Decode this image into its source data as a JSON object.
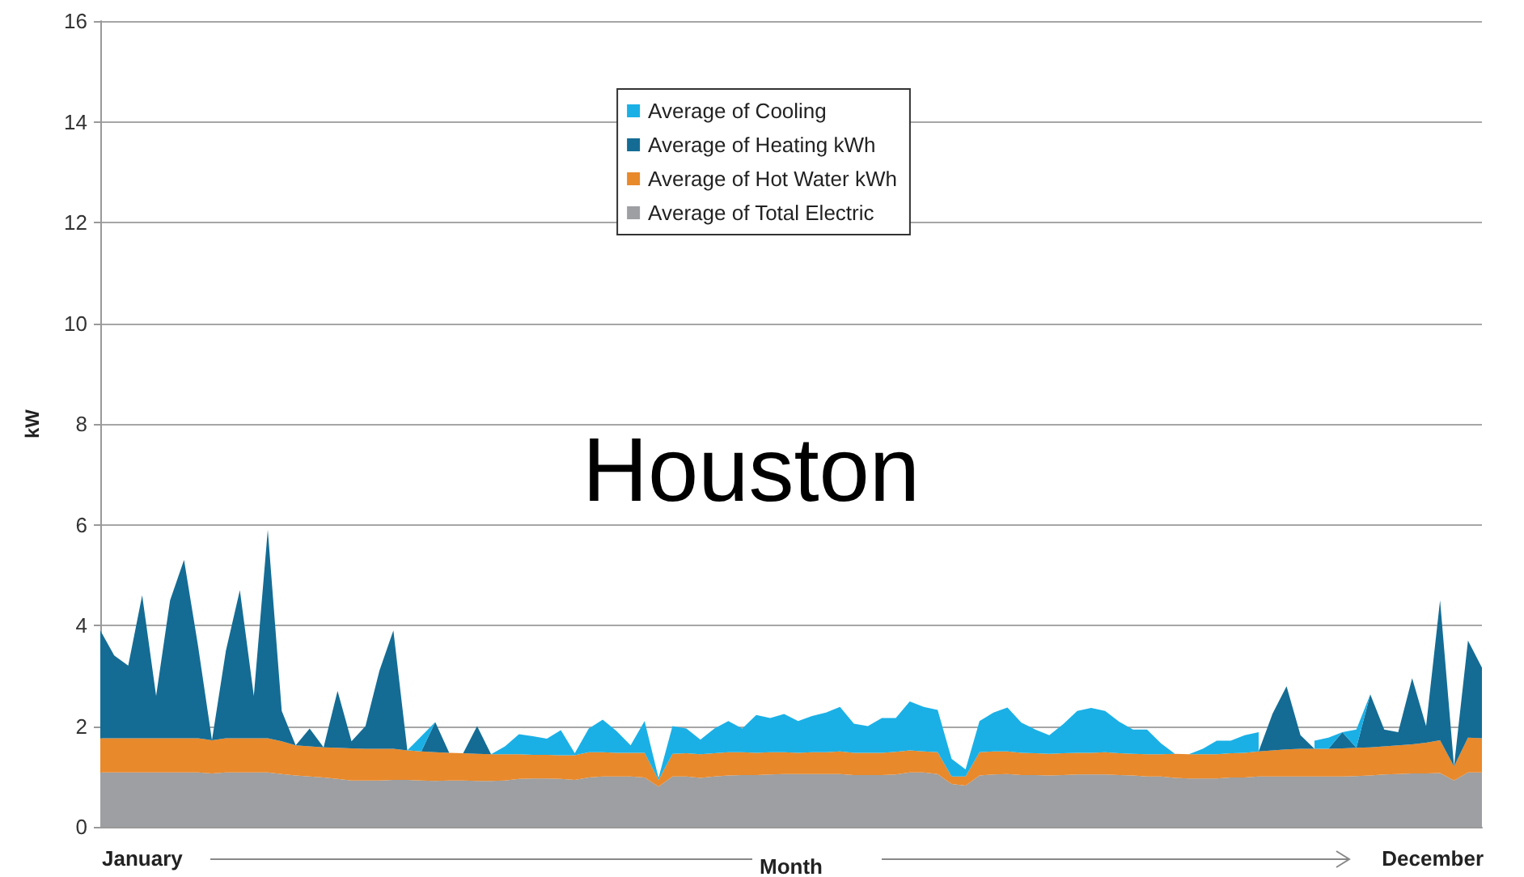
{
  "chart_data": {
    "type": "area",
    "stacked": true,
    "ylabel": "kW",
    "xlabel": "Month",
    "annotations": [
      "Houston",
      "January",
      "December"
    ],
    "categories": [
      null,
      null,
      null,
      null,
      null,
      null,
      null,
      null,
      null,
      null,
      null,
      null,
      null,
      null,
      null,
      null,
      null,
      null,
      null,
      null,
      null,
      null,
      null,
      null,
      null,
      null,
      null,
      null,
      null,
      null,
      null,
      null,
      null,
      null,
      null,
      null,
      null,
      null,
      null,
      null,
      null,
      null,
      null,
      null,
      null,
      null,
      null,
      null,
      null,
      null,
      null,
      null,
      null,
      null,
      null,
      null,
      null,
      null,
      null,
      null,
      null,
      null,
      null,
      null,
      null,
      null,
      null,
      null,
      null,
      null,
      null,
      null,
      null,
      null,
      null,
      null,
      null,
      null,
      null,
      null,
      null,
      null,
      null,
      null,
      null,
      null,
      null,
      null,
      null,
      null,
      null,
      null,
      null,
      null,
      null,
      null,
      null,
      null,
      null,
      null
    ],
    "ylim": [
      0,
      16
    ],
    "yticks": [
      0,
      2,
      4,
      6,
      8,
      10,
      12,
      14,
      16
    ],
    "grid": "y",
    "legend": "top",
    "series": [
      {
        "name": "Average of Total Electric",
        "color": "#9d9fa2",
        "values": [
          1.08,
          1.08,
          1.08,
          1.08,
          1.08,
          1.08,
          1.08,
          1.08,
          1.06,
          1.08,
          1.08,
          1.08,
          1.08,
          1.05,
          1.02,
          1.0,
          0.98,
          0.95,
          0.92,
          0.92,
          0.92,
          0.93,
          0.93,
          0.92,
          0.91,
          0.92,
          0.92,
          0.91,
          0.91,
          0.92,
          0.95,
          0.96,
          0.96,
          0.95,
          0.93,
          0.98,
          1.0,
          1.0,
          1.0,
          0.98,
          0.8,
          1.0,
          1.0,
          0.97,
          1.0,
          1.02,
          1.03,
          1.03,
          1.04,
          1.05,
          1.05,
          1.05,
          1.05,
          1.05,
          1.03,
          1.03,
          1.03,
          1.04,
          1.08,
          1.08,
          1.05,
          0.85,
          0.82,
          1.02,
          1.04,
          1.05,
          1.03,
          1.03,
          1.02,
          1.03,
          1.04,
          1.04,
          1.04,
          1.03,
          1.02,
          1.0,
          1.0,
          0.97,
          0.96,
          0.96,
          0.96,
          0.98,
          0.98,
          1.0,
          1.0,
          1.0,
          1.0,
          1.0,
          1.0,
          1.0,
          1.01,
          1.02,
          1.04,
          1.05,
          1.06,
          1.06,
          1.07,
          0.92,
          1.08,
          1.08
        ]
      },
      {
        "name": "Average of Hot Water kWh",
        "color": "#e8892c",
        "values": [
          0.68,
          0.68,
          0.68,
          0.68,
          0.68,
          0.68,
          0.68,
          0.68,
          0.66,
          0.68,
          0.68,
          0.68,
          0.68,
          0.65,
          0.6,
          0.6,
          0.6,
          0.62,
          0.64,
          0.63,
          0.63,
          0.62,
          0.59,
          0.58,
          0.57,
          0.55,
          0.54,
          0.54,
          0.53,
          0.52,
          0.49,
          0.47,
          0.47,
          0.47,
          0.49,
          0.5,
          0.48,
          0.47,
          0.47,
          0.49,
          0.13,
          0.45,
          0.46,
          0.47,
          0.46,
          0.46,
          0.45,
          0.44,
          0.44,
          0.43,
          0.42,
          0.43,
          0.43,
          0.45,
          0.44,
          0.44,
          0.44,
          0.45,
          0.44,
          0.42,
          0.43,
          0.15,
          0.18,
          0.46,
          0.46,
          0.45,
          0.44,
          0.43,
          0.43,
          0.43,
          0.43,
          0.43,
          0.44,
          0.43,
          0.43,
          0.44,
          0.44,
          0.48,
          0.48,
          0.48,
          0.48,
          0.48,
          0.49,
          0.5,
          0.52,
          0.54,
          0.55,
          0.55,
          0.55,
          0.56,
          0.56,
          0.56,
          0.56,
          0.57,
          0.58,
          0.61,
          0.65,
          0.28,
          0.69,
          0.68
        ]
      },
      {
        "name": "Average of Heating kWh",
        "color": "#146c94",
        "values": [
          2.14,
          1.64,
          1.44,
          2.84,
          0.84,
          2.74,
          3.54,
          1.84,
          0,
          1.74,
          2.94,
          0.84,
          4.14,
          0.6,
          0,
          0.35,
          0,
          1.13,
          0.14,
          0.45,
          1.55,
          2.35,
          0,
          0,
          0.6,
          0,
          0,
          0.55,
          0,
          0,
          0,
          0,
          0,
          0,
          0,
          0,
          0,
          0,
          0,
          0,
          0,
          0,
          0,
          0,
          0,
          0,
          0,
          0,
          0,
          0,
          0,
          0,
          0,
          0,
          0,
          0,
          0,
          0,
          0,
          0,
          0,
          0,
          0,
          0,
          0,
          0,
          0,
          0,
          0,
          0,
          0,
          0,
          0,
          0,
          0,
          0,
          0,
          0,
          0,
          0,
          0,
          0,
          0,
          0,
          0.73,
          1.25,
          0.27,
          0,
          0,
          0.32,
          0,
          1.05,
          0.33,
          0.26,
          1.31,
          0.33,
          2.78,
          0,
          1.93,
          1.4
        ]
      },
      {
        "name": "Average of Cooling",
        "color": "#1ab0e6",
        "values": [
          null,
          null,
          null,
          null,
          null,
          null,
          null,
          null,
          null,
          null,
          null,
          null,
          null,
          null,
          null,
          null,
          null,
          null,
          null,
          null,
          null,
          null,
          0,
          0.3,
          0,
          0,
          0,
          0,
          0,
          0.16,
          0.4,
          0.37,
          0.32,
          0.5,
          0.04,
          0.47,
          0.65,
          0.43,
          0.15,
          0.63,
          0.04,
          0.55,
          0.49,
          0.29,
          0.49,
          0.62,
          0.47,
          0.75,
          0.68,
          0.76,
          0.63,
          0.72,
          0.79,
          0.88,
          0.58,
          0.53,
          0.69,
          0.67,
          0.97,
          0.88,
          0.84,
          0.35,
          0.14,
          0.62,
          0.77,
          0.87,
          0.6,
          0.47,
          0.37,
          0.58,
          0.83,
          0.89,
          0.82,
          0.63,
          0.48,
          0.49,
          0.22,
          0,
          0,
          0.11,
          0.27,
          0.25,
          0.35,
          0.38,
          null,
          null,
          null,
          0.16,
          0.22,
          0,
          0.36,
          0,
          null,
          null,
          null,
          null,
          null,
          null,
          null,
          null
        ]
      }
    ]
  }
}
